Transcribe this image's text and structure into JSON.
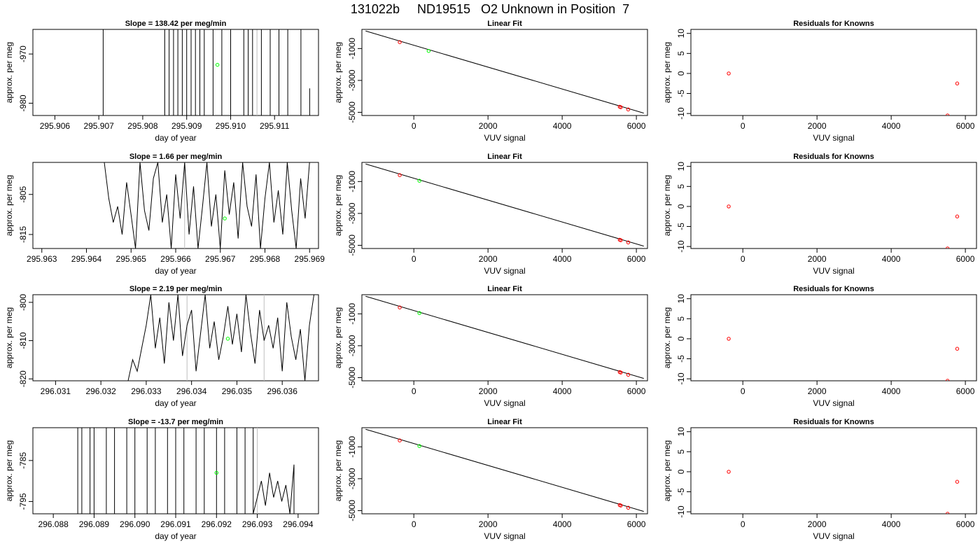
{
  "figure_title": "131022b     ND19515   O2 Unknown in Position  7",
  "colors": {
    "known": "#ff0000",
    "unknown": "#00ff00",
    "trace": "#000000",
    "refline": "#bebebe"
  },
  "chart_data": [
    {
      "type": "line",
      "title": "Slope =  138.42  per meg/min",
      "xlabel": "day of year",
      "ylabel": "approx. per meg",
      "xlim": [
        295.9055,
        295.912
      ],
      "ylim": [
        -982.5,
        -965.0
      ],
      "xticks": [
        "295.906",
        "295.907",
        "295.908",
        "295.909",
        "295.910",
        "295.911"
      ],
      "yticks": [
        "-980",
        "-970"
      ],
      "grid": false,
      "reference_lines_x": [
        295.9085,
        295.9106
      ],
      "series": [
        {
          "x": [
            295.9071,
            295.9071,
            295.9085,
            295.9085,
            295.9086,
            295.9086,
            295.9087,
            295.9087,
            295.9088,
            295.9088,
            295.9089,
            295.9089,
            295.909,
            295.909,
            295.9091,
            295.9091,
            295.9092,
            295.9092,
            295.9093,
            295.9093,
            295.9094,
            295.9094,
            295.9096,
            295.9096,
            295.9098,
            295.9098,
            295.91,
            295.91,
            295.9103,
            295.9103,
            295.9104,
            295.9104,
            295.9105,
            295.9105,
            295.9107,
            295.9107,
            295.9109,
            295.9109,
            295.9111,
            295.9111,
            295.9113,
            295.9113,
            295.9116,
            295.9116,
            295.9118,
            295.9118
          ],
          "y": [
            -982.5,
            -965.0,
            -965.0,
            -982.5,
            -982.5,
            -965.0,
            -965.0,
            -982.5,
            -982.5,
            -965.0,
            -965.0,
            -982.5,
            -982.5,
            -965.0,
            -965.0,
            -982.5,
            -982.5,
            -965.0,
            -965.0,
            -982.5,
            -982.5,
            -965.0,
            -965.0,
            -982.5,
            -982.5,
            -965.0,
            -965.0,
            -982.5,
            -982.5,
            -965.0,
            -965.0,
            -982.5,
            -982.5,
            -965.0,
            -965.0,
            -982.5,
            -982.5,
            -965.0,
            -965.0,
            -982.5,
            -982.5,
            -965.0,
            -965.0,
            -982.5,
            -982.5,
            -977.0
          ]
        }
      ],
      "unknown_point": {
        "x": 295.9097,
        "y": -972.2
      }
    },
    {
      "type": "scatter",
      "title": "Linear Fit",
      "xlabel": "VUV signal",
      "ylabel": "approx. per meg",
      "xlim": [
        -1400,
        6300
      ],
      "ylim": [
        -5200,
        200
      ],
      "xticks": [
        0,
        2000,
        4000,
        6000
      ],
      "yticks": [
        -5000,
        -3000,
        -1000
      ],
      "fit_line": {
        "x": [
          -1300,
          6200
        ],
        "y": [
          100,
          -5050
        ]
      },
      "knowns": {
        "x": [
          -380,
          5550,
          5580,
          5780
        ],
        "y": [
          -600,
          -4650,
          -4680,
          -4820
        ]
      },
      "unknown": {
        "x": 400,
        "y": -1150
      }
    },
    {
      "type": "scatter",
      "title": "Residuals for Knowns",
      "xlabel": "VUV signal",
      "ylabel": "approx. per meg",
      "xlim": [
        -1400,
        6300
      ],
      "ylim": [
        -10.5,
        11
      ],
      "xticks": [
        0,
        2000,
        4000,
        6000
      ],
      "yticks": [
        -10,
        -5,
        0,
        5,
        10
      ],
      "points": {
        "x": [
          -380,
          5520,
          5780
        ],
        "y": [
          0,
          -10.5,
          -2.5
        ]
      }
    },
    {
      "type": "line",
      "title": "Slope =  1.66  per meg/min",
      "xlabel": "day of year",
      "ylabel": "approx. per meg",
      "xlim": [
        295.9628,
        295.9692
      ],
      "ylim": [
        -818.5,
        -797.0
      ],
      "xticks": [
        "295.963",
        "295.964",
        "295.965",
        "295.966",
        "295.967",
        "295.968",
        "295.969"
      ],
      "yticks": [
        "-815",
        "-805"
      ],
      "grid": false,
      "reference_lines_x": [
        295.9662
      ],
      "series": [
        {
          "x": [
            295.9644,
            295.9645,
            295.9646,
            295.9647,
            295.9648,
            295.9649,
            295.965,
            295.9651,
            295.9652,
            295.9653,
            295.9654,
            295.9655,
            295.9656,
            295.9657,
            295.9658,
            295.9659,
            295.966,
            295.9661,
            295.9662,
            295.9663,
            295.9664,
            295.9665,
            295.9666,
            295.9667,
            295.9668,
            295.9669,
            295.967,
            295.9671,
            295.9672,
            295.9673,
            295.9674,
            295.9675,
            295.9676,
            295.9677,
            295.9678,
            295.9679,
            295.968,
            295.9681,
            295.9682,
            295.9683,
            295.9684,
            295.9685,
            295.9686,
            295.9687,
            295.9688,
            295.9689,
            295.969
          ],
          "y": [
            -797.0,
            -806.0,
            -812.0,
            -808.0,
            -815.0,
            -802.0,
            -810.0,
            -818.5,
            -797.0,
            -809.0,
            -814.0,
            -801.0,
            -797.0,
            -812.0,
            -805.0,
            -818.5,
            -800.0,
            -811.0,
            -797.0,
            -815.0,
            -803.0,
            -818.5,
            -808.0,
            -797.0,
            -813.0,
            -805.0,
            -818.5,
            -799.0,
            -810.0,
            -802.0,
            -816.0,
            -797.0,
            -808.0,
            -813.0,
            -800.0,
            -818.5,
            -806.0,
            -797.0,
            -812.0,
            -804.0,
            -815.0,
            -797.0,
            -809.0,
            -818.5,
            -801.0,
            -811.0,
            -797.0
          ]
        }
      ],
      "unknown_point": {
        "x": 295.9671,
        "y": -811.0
      }
    },
    {
      "type": "scatter",
      "title": "Linear Fit",
      "xlabel": "VUV signal",
      "ylabel": "approx. per meg",
      "xlim": [
        -1400,
        6300
      ],
      "ylim": [
        -5200,
        200
      ],
      "xticks": [
        0,
        2000,
        4000,
        6000
      ],
      "yticks": [
        -5000,
        -3000,
        -1000
      ],
      "fit_line": {
        "x": [
          -1300,
          6200
        ],
        "y": [
          100,
          -5050
        ]
      },
      "knowns": {
        "x": [
          -380,
          5550,
          5580,
          5780
        ],
        "y": [
          -600,
          -4650,
          -4680,
          -4820
        ]
      },
      "unknown": {
        "x": 150,
        "y": -950
      }
    },
    {
      "type": "scatter",
      "title": "Residuals for Knowns",
      "xlabel": "VUV signal",
      "ylabel": "approx. per meg",
      "xlim": [
        -1400,
        6300
      ],
      "ylim": [
        -10.5,
        11
      ],
      "xticks": [
        0,
        2000,
        4000,
        6000
      ],
      "yticks": [
        -10,
        -5,
        0,
        5,
        10
      ],
      "points": {
        "x": [
          -380,
          5520,
          5780
        ],
        "y": [
          0,
          -10.5,
          -2.5
        ]
      }
    },
    {
      "type": "line",
      "title": "Slope =  2.19  per meg/min",
      "xlabel": "day of year",
      "ylabel": "approx. per meg",
      "xlim": [
        296.0305,
        296.0368
      ],
      "ylim": [
        -820.5,
        -798.0
      ],
      "xticks": [
        "296.031",
        "296.032",
        "296.033",
        "296.034",
        "296.035",
        "296.036"
      ],
      "yticks": [
        "-820",
        "-810",
        "-800"
      ],
      "grid": false,
      "reference_lines_x": [
        296.0339,
        296.0356
      ],
      "series": [
        {
          "x": [
            296.0305,
            296.0326,
            296.0327,
            296.0328,
            296.0329,
            296.033,
            296.0331,
            296.0332,
            296.0333,
            296.0334,
            296.0335,
            296.0336,
            296.0337,
            296.0338,
            296.0339,
            296.034,
            296.0341,
            296.0342,
            296.0343,
            296.0344,
            296.0345,
            296.0346,
            296.0347,
            296.0348,
            296.0349,
            296.035,
            296.0351,
            296.0352,
            296.0353,
            296.0354,
            296.0355,
            296.0356,
            296.0357,
            296.0358,
            296.0359,
            296.036,
            296.0361,
            296.0362,
            296.0363,
            296.0364,
            296.0365,
            296.0366,
            296.0367
          ],
          "y": [
            -820.5,
            -820.5,
            -815.0,
            -818.0,
            -812.0,
            -806.0,
            -798.0,
            -812.0,
            -804.0,
            -816.0,
            -800.0,
            -810.0,
            -798.0,
            -814.0,
            -806.0,
            -802.0,
            -818.0,
            -808.0,
            -798.0,
            -812.0,
            -805.0,
            -815.0,
            -809.0,
            -801.0,
            -811.0,
            -803.0,
            -813.0,
            -798.0,
            -808.0,
            -816.0,
            -802.0,
            -810.0,
            -806.0,
            -812.0,
            -804.0,
            -818.0,
            -800.0,
            -809.0,
            -815.0,
            -807.0,
            -820.5,
            -806.0,
            -798.0
          ]
        }
      ],
      "unknown_point": {
        "x": 296.0348,
        "y": -809.5
      }
    },
    {
      "type": "scatter",
      "title": "Linear Fit",
      "xlabel": "VUV signal",
      "ylabel": "approx. per meg",
      "xlim": [
        -1400,
        6300
      ],
      "ylim": [
        -5200,
        200
      ],
      "xticks": [
        0,
        2000,
        4000,
        6000
      ],
      "yticks": [
        -5000,
        -3000,
        -1000
      ],
      "fit_line": {
        "x": [
          -1300,
          6200
        ],
        "y": [
          100,
          -5050
        ]
      },
      "knowns": {
        "x": [
          -380,
          5550,
          5580,
          5780
        ],
        "y": [
          -600,
          -4650,
          -4680,
          -4820
        ]
      },
      "unknown": {
        "x": 150,
        "y": -950
      }
    },
    {
      "type": "scatter",
      "title": "Residuals for Knowns",
      "xlabel": "VUV signal",
      "ylabel": "approx. per meg",
      "xlim": [
        -1400,
        6300
      ],
      "ylim": [
        -10.5,
        11
      ],
      "xticks": [
        0,
        2000,
        4000,
        6000
      ],
      "yticks": [
        -10,
        -5,
        0,
        5,
        10
      ],
      "points": {
        "x": [
          -380,
          5520,
          5780
        ],
        "y": [
          0,
          -10.5,
          -2.5
        ]
      }
    },
    {
      "type": "line",
      "title": "Slope =  -13.7  per meg/min",
      "xlabel": "day of year",
      "ylabel": "approx. per meg",
      "xlim": [
        296.0875,
        296.0945
      ],
      "ylim": [
        -798.0,
        -777.0
      ],
      "xticks": [
        "296.088",
        "296.089",
        "296.090",
        "296.091",
        "296.092",
        "296.093",
        "296.094"
      ],
      "yticks": [
        "-795",
        "-785"
      ],
      "grid": false,
      "reference_lines_x": [
        296.093
      ],
      "series": [
        {
          "x": [
            296.0886,
            296.0886,
            296.0887,
            296.0887,
            296.0889,
            296.0889,
            296.089,
            296.089,
            296.0893,
            296.0893,
            296.0895,
            296.0895,
            296.0898,
            296.0898,
            296.09,
            296.09,
            296.0903,
            296.0903,
            296.0905,
            296.0905,
            296.0908,
            296.0908,
            296.091,
            296.091,
            296.0912,
            296.0912,
            296.0915,
            296.0915,
            296.0917,
            296.0917,
            296.092,
            296.092,
            296.0922,
            296.0922,
            296.0925,
            296.0925,
            296.0927,
            296.0927,
            296.0929,
            296.0929,
            296.0931,
            296.0932,
            296.0933,
            296.0934,
            296.0935,
            296.0936,
            296.0937,
            296.0938,
            296.0939,
            296.0939
          ],
          "y": [
            -798.0,
            -777.0,
            -777.0,
            -798.0,
            -798.0,
            -777.0,
            -777.0,
            -798.0,
            -798.0,
            -777.0,
            -777.0,
            -798.0,
            -798.0,
            -777.0,
            -777.0,
            -798.0,
            -798.0,
            -777.0,
            -777.0,
            -798.0,
            -798.0,
            -777.0,
            -777.0,
            -798.0,
            -798.0,
            -777.0,
            -777.0,
            -798.0,
            -798.0,
            -777.0,
            -777.0,
            -798.0,
            -798.0,
            -777.0,
            -777.0,
            -798.0,
            -798.0,
            -777.0,
            -777.0,
            -798.0,
            -790.0,
            -796.0,
            -788.0,
            -794.0,
            -790.0,
            -795.0,
            -791.0,
            -798.0,
            -786.0,
            -798.0
          ]
        }
      ],
      "unknown_point": {
        "x": 296.092,
        "y": -788.0
      }
    },
    {
      "type": "scatter",
      "title": "Linear Fit",
      "xlabel": "VUV signal",
      "ylabel": "approx. per meg",
      "xlim": [
        -1400,
        6300
      ],
      "ylim": [
        -5200,
        200
      ],
      "xticks": [
        0,
        2000,
        4000,
        6000
      ],
      "yticks": [
        -5000,
        -3000,
        -1000
      ],
      "fit_line": {
        "x": [
          -1300,
          6200
        ],
        "y": [
          100,
          -5050
        ]
      },
      "knowns": {
        "x": [
          -380,
          5550,
          5580,
          5780
        ],
        "y": [
          -600,
          -4650,
          -4680,
          -4820
        ]
      },
      "unknown": {
        "x": 150,
        "y": -950
      }
    },
    {
      "type": "scatter",
      "title": "Residuals for Knowns",
      "xlabel": "VUV signal",
      "ylabel": "approx. per meg",
      "xlim": [
        -1400,
        6300
      ],
      "ylim": [
        -10.5,
        11
      ],
      "xticks": [
        0,
        2000,
        4000,
        6000
      ],
      "yticks": [
        -10,
        -5,
        0,
        5,
        10
      ],
      "points": {
        "x": [
          -380,
          5520,
          5780
        ],
        "y": [
          0,
          -10.5,
          -2.5
        ]
      }
    }
  ]
}
